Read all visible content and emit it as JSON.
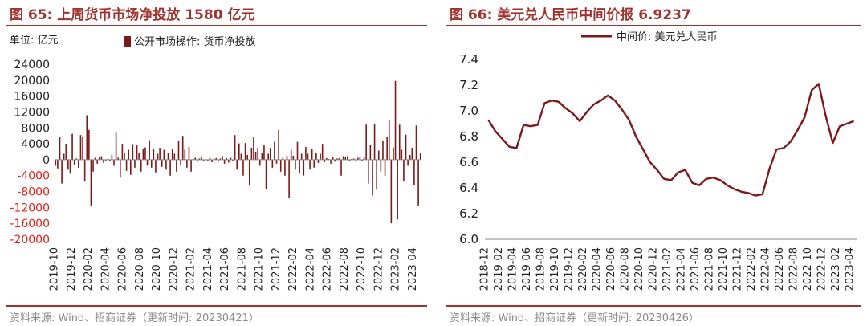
{
  "left": {
    "title": "图 65:  上周货币市场净投放 1580 亿元",
    "unit_label": "单位: 亿元",
    "source": "资料来源: Wind、招商证券（更新时间: 20230421）",
    "chart_data": {
      "type": "bar",
      "legend": "公开市场操作: 货币净投放",
      "legend_position": "top",
      "color": "#7b1a1a",
      "ylim": [
        -20000,
        24000
      ],
      "yticks": [
        24000,
        20000,
        16000,
        12000,
        8000,
        4000,
        0,
        -4000,
        -8000,
        -12000,
        -16000,
        -20000
      ],
      "ytick_labels": [
        "24000",
        "20000",
        "16000",
        "12000",
        "8000",
        "4000",
        "0",
        "-4000",
        "-8000",
        "-12000",
        "-16000",
        "-20000"
      ],
      "xlim": [
        "2019-10",
        "2023-05"
      ],
      "xtick_labels": [
        "2019-10",
        "2019-12",
        "2020-02",
        "2020-04",
        "2020-06",
        "2020-08",
        "2020-10",
        "2020-12",
        "2021-02",
        "2021-04",
        "2021-06",
        "2021-08",
        "2021-10",
        "2021-12",
        "2022-02",
        "2022-04",
        "2022-06",
        "2022-08",
        "2022-10",
        "2022-12",
        "2023-02",
        "2023-04"
      ],
      "values": [
        -1500,
        -2200,
        5800,
        -6000,
        1500,
        4000,
        -2500,
        -3500,
        6500,
        -1200,
        300,
        -2000,
        6200,
        5800,
        -5500,
        11200,
        7500,
        -11500,
        -3000,
        500,
        -1000,
        600,
        900,
        -800,
        -300,
        200,
        -400,
        1200,
        -1500,
        6800,
        500,
        -4500,
        4000,
        1800,
        -2800,
        2500,
        -3800,
        3900,
        -2000,
        3600,
        1800,
        -3000,
        2800,
        3100,
        -1500,
        4900,
        -2000,
        2800,
        -3200,
        1500,
        3000,
        -1800,
        2500,
        -2500,
        1800,
        -4000,
        2800,
        1500,
        -3000,
        4800,
        -1500,
        6000,
        2500,
        -2000,
        3200,
        -3000,
        200,
        500,
        -500,
        300,
        600,
        -400,
        100,
        -300,
        500,
        -600,
        200,
        400,
        -500,
        300,
        900,
        -1000,
        400,
        -700,
        500,
        -300,
        6200,
        -2500,
        4100,
        1500,
        -4000,
        4200,
        1200,
        -6500,
        3000,
        5800,
        2000,
        3000,
        -1500,
        1800,
        3600,
        -7500,
        1500,
        3000,
        -2000,
        4500,
        -1000,
        7500,
        -3000,
        500,
        -4000,
        1000,
        -9500,
        2500,
        1000,
        -2500,
        4500,
        -3500,
        1500,
        -4000,
        3200,
        1500,
        -2500,
        2600,
        -2000,
        1700,
        -800,
        1500,
        4000,
        -600,
        400,
        200,
        -1000,
        600,
        -500,
        300,
        400,
        -4000,
        900,
        700,
        900,
        -400,
        200,
        300,
        -300,
        500,
        800,
        -400,
        600,
        8800,
        -6000,
        3800,
        -9000,
        9000,
        -7500,
        2300,
        -3000,
        4800,
        -4000,
        5800,
        10000,
        -16000,
        3100,
        19800,
        -15000,
        8800,
        2500,
        -5500,
        6300,
        -1500,
        1200,
        3000,
        -6500,
        8600,
        -11500,
        1580
      ]
    }
  },
  "right": {
    "title": "图 66:  美元兑人民币中间价报 6.9237",
    "source": "资料来源: Wind、招商证券（更新时间: 20230426）",
    "chart_data": {
      "type": "line",
      "legend_position": "top",
      "color": "#7b1a1a",
      "ylim": [
        6.0,
        7.4
      ],
      "yticks": [
        7.4,
        7.2,
        7.0,
        6.8,
        6.6,
        6.4,
        6.2,
        6.0
      ],
      "ytick_labels": [
        "7.4",
        "7.2",
        "7.0",
        "6.8",
        "6.6",
        "6.4",
        "6.2",
        "6.0"
      ],
      "xlim": [
        "2018-12",
        "2023-05"
      ],
      "xtick_labels": [
        "2018-12",
        "2019-02",
        "2019-04",
        "2019-06",
        "2019-08",
        "2019-10",
        "2019-12",
        "2020-02",
        "2020-04",
        "2020-06",
        "2020-08",
        "2020-10",
        "2020-12",
        "2021-02",
        "2021-04",
        "2021-06",
        "2021-08",
        "2021-10",
        "2021-12",
        "2022-02",
        "2022-04",
        "2022-06",
        "2022-08",
        "2022-10",
        "2022-12",
        "2023-02",
        "2023-04"
      ],
      "series": [
        {
          "name": "中间价: 美元兑人民币",
          "x": [
            "2018-12",
            "2019-01",
            "2019-02",
            "2019-03",
            "2019-04",
            "2019-05",
            "2019-06",
            "2019-07",
            "2019-08",
            "2019-09",
            "2019-10",
            "2019-11",
            "2019-12",
            "2020-01",
            "2020-02",
            "2020-03",
            "2020-04",
            "2020-05",
            "2020-06",
            "2020-07",
            "2020-08",
            "2020-09",
            "2020-10",
            "2020-11",
            "2020-12",
            "2021-01",
            "2021-02",
            "2021-03",
            "2021-04",
            "2021-05",
            "2021-06",
            "2021-07",
            "2021-08",
            "2021-09",
            "2021-10",
            "2021-11",
            "2021-12",
            "2022-01",
            "2022-02",
            "2022-03",
            "2022-04",
            "2022-05",
            "2022-06",
            "2022-07",
            "2022-08",
            "2022-09",
            "2022-10",
            "2022-11",
            "2022-12",
            "2023-01",
            "2023-02",
            "2023-03",
            "2023-04"
          ],
          "y": [
            6.93,
            6.84,
            6.78,
            6.72,
            6.71,
            6.89,
            6.88,
            6.89,
            7.06,
            7.08,
            7.07,
            7.02,
            6.98,
            6.92,
            6.99,
            7.05,
            7.08,
            7.12,
            7.08,
            7.01,
            6.93,
            6.8,
            6.7,
            6.6,
            6.54,
            6.47,
            6.46,
            6.52,
            6.54,
            6.44,
            6.42,
            6.47,
            6.48,
            6.46,
            6.42,
            6.39,
            6.37,
            6.36,
            6.34,
            6.35,
            6.55,
            6.7,
            6.71,
            6.76,
            6.85,
            6.95,
            7.16,
            7.21,
            6.96,
            6.75,
            6.88,
            6.9,
            6.92
          ]
        }
      ]
    }
  }
}
